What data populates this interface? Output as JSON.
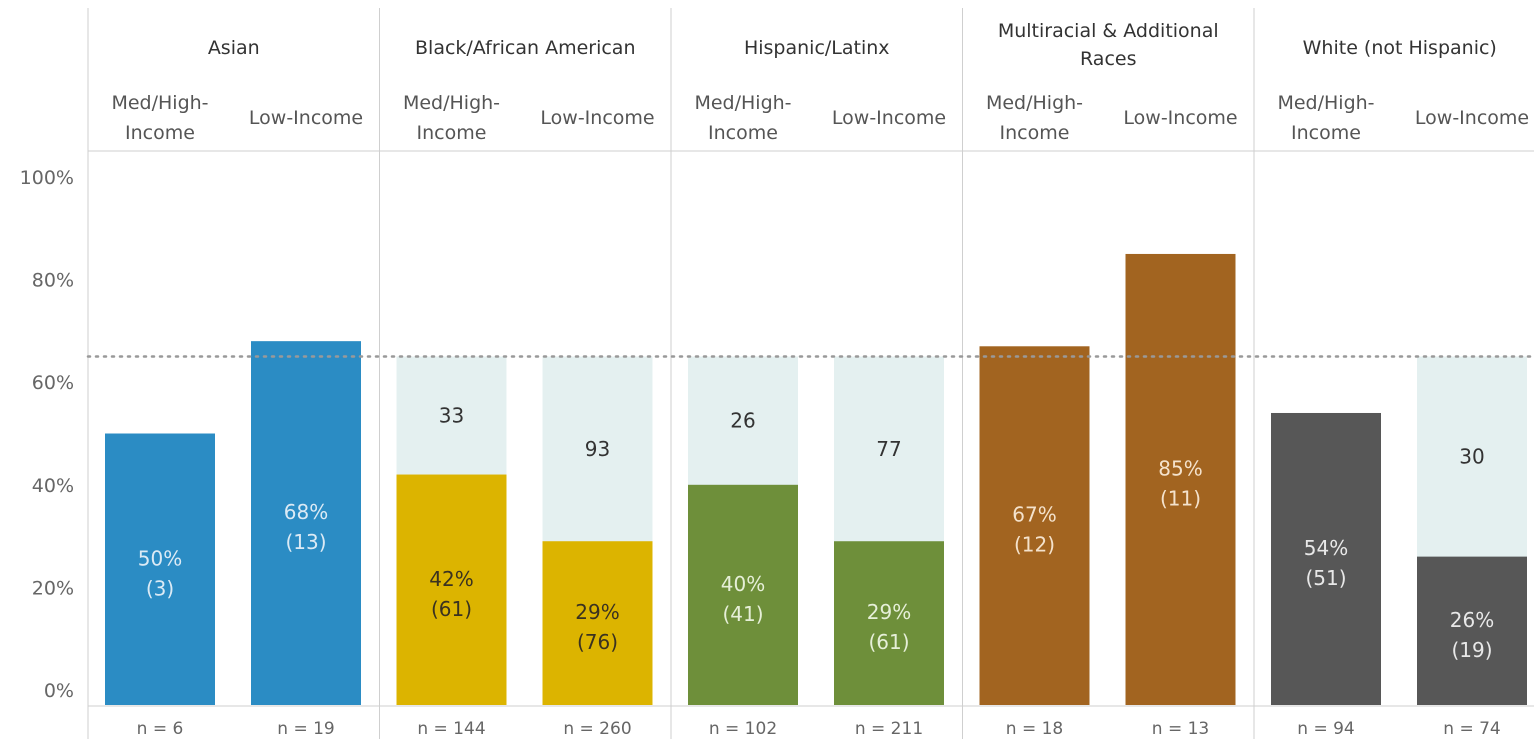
{
  "chart_data": {
    "type": "bar",
    "ylim": [
      0,
      100
    ],
    "yticks": [
      "0%",
      "20%",
      "40%",
      "60%",
      "80%",
      "100%"
    ],
    "reference_line": 65,
    "grid": false,
    "groups": [
      {
        "name": "Asian",
        "color": "#2b8cc4",
        "label_color": "#dbeaf5",
        "bars": [
          {
            "category": [
              "Med/High-",
              "Income"
            ],
            "value": 50,
            "value_label": "50%",
            "count_label": "(3)",
            "remaining": null,
            "n_label": "n = 6"
          },
          {
            "category": [
              "Low-Income"
            ],
            "value": 68,
            "value_label": "68%",
            "count_label": "(13)",
            "remaining": null,
            "n_label": "n = 19"
          }
        ]
      },
      {
        "name": "Black/African American",
        "color": "#dcb400",
        "label_color": "#3a3220",
        "bars": [
          {
            "category": [
              "Med/High-",
              "Income"
            ],
            "value": 42,
            "value_label": "42%",
            "count_label": "(61)",
            "remaining": "33",
            "n_label": "n = 144"
          },
          {
            "category": [
              "Low-Income"
            ],
            "value": 29,
            "value_label": "29%",
            "count_label": "(76)",
            "remaining": "93",
            "n_label": "n = 260"
          }
        ]
      },
      {
        "name": "Hispanic/Latinx",
        "color": "#6e8f3a",
        "label_color": "#e6efd8",
        "bars": [
          {
            "category": [
              "Med/High-",
              "Income"
            ],
            "value": 40,
            "value_label": "40%",
            "count_label": "(41)",
            "remaining": "26",
            "n_label": "n = 102"
          },
          {
            "category": [
              "Low-Income"
            ],
            "value": 29,
            "value_label": "29%",
            "count_label": "(61)",
            "remaining": "77",
            "n_label": "n = 211"
          }
        ]
      },
      {
        "name": "Multiracial & Additional Races",
        "color": "#a26420",
        "label_color": "#f4e2cc",
        "bars": [
          {
            "category": [
              "Med/High-",
              "Income"
            ],
            "value": 67,
            "value_label": "67%",
            "count_label": "(12)",
            "remaining": null,
            "n_label": "n = 18"
          },
          {
            "category": [
              "Low-Income"
            ],
            "value": 85,
            "value_label": "85%",
            "count_label": "(11)",
            "remaining": null,
            "n_label": "n = 13"
          }
        ]
      },
      {
        "name": "White (not Hispanic)",
        "color": "#575757",
        "label_color": "#e8e8e8",
        "bars": [
          {
            "category": [
              "Med/High-",
              "Income"
            ],
            "value": 54,
            "value_label": "54%",
            "count_label": "(51)",
            "remaining": null,
            "n_label": "n = 94"
          },
          {
            "category": [
              "Low-Income"
            ],
            "value": 26,
            "value_label": "26%",
            "count_label": "(19)",
            "remaining": "30",
            "n_label": "n = 74"
          }
        ]
      }
    ],
    "colors": {
      "remaining_fill": "#e4f0f0",
      "reference_line": "#999999",
      "divider": "#cfcfcf"
    }
  }
}
